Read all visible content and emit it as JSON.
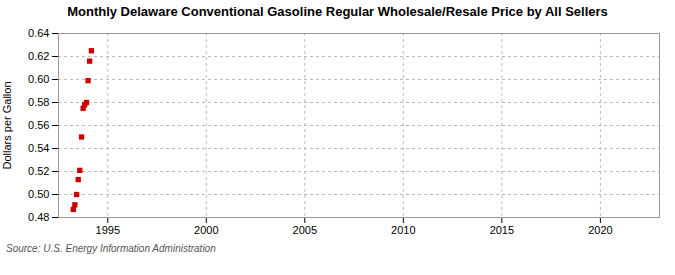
{
  "chart_data": {
    "type": "scatter",
    "title": "Monthly Delaware Conventional Gasoline Regular Wholesale/Resale Price by All Sellers",
    "ylabel": "Dollars per Gallon",
    "source": "Source: U.S. Energy Information Administration",
    "x": [
      1993.25,
      1993.33,
      1993.42,
      1993.5,
      1993.58,
      1993.67,
      1993.75,
      1993.83,
      1993.92,
      1994.0,
      1994.08,
      1994.17
    ],
    "values": [
      0.487,
      0.491,
      0.5,
      0.513,
      0.521,
      0.55,
      0.575,
      0.578,
      0.58,
      0.599,
      0.616,
      0.625
    ],
    "color": "#cc0000",
    "marker": "square",
    "xlim": [
      1992.5,
      2023.0
    ],
    "ylim": [
      0.48,
      0.64
    ],
    "xticks": [
      1995,
      2000,
      2005,
      2010,
      2015,
      2020
    ],
    "yticks": [
      0.48,
      {
        "value": 0.5,
        "label": "0.50"
      },
      0.52,
      0.54,
      0.56,
      0.58,
      {
        "value": 0.6,
        "label": "0.60"
      },
      0.62,
      0.64
    ],
    "grid": true
  }
}
